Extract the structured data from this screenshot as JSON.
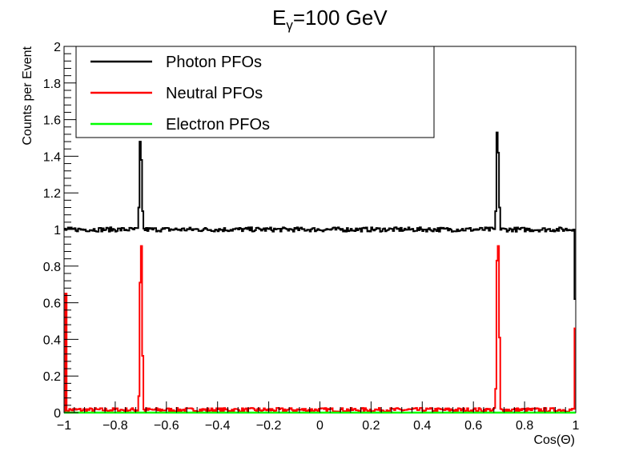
{
  "chart_data": {
    "type": "line",
    "title_main": "E",
    "title_sub": "γ",
    "title_rest": "=100 GeV",
    "xlabel": "Cos(Θ)",
    "ylabel": "Counts per Event",
    "xlim": [
      -1,
      1
    ],
    "ylim": [
      0,
      2
    ],
    "grid": false,
    "legend_position": "top-left",
    "xticks": [
      -1,
      -0.8,
      -0.6,
      -0.4,
      -0.2,
      0,
      0.2,
      0.4,
      0.6,
      0.8,
      1
    ],
    "xtick_labels": [
      "−1",
      "−0.8",
      "−0.6",
      "−0.4",
      "−0.2",
      "0",
      "0.2",
      "0.4",
      "0.6",
      "0.8",
      "1"
    ],
    "yticks": [
      0,
      0.2,
      0.4,
      0.6,
      0.8,
      1,
      1.2,
      1.4,
      1.6,
      1.8,
      2
    ],
    "ytick_labels": [
      "0",
      "0.2",
      "0.4",
      "0.6",
      "0.8",
      "1",
      "1.2",
      "1.4",
      "1.6",
      "1.8",
      "2"
    ],
    "series": [
      {
        "name": "Photon PFOs",
        "color": "#000000",
        "baseline": 1.0,
        "peaks": [
          {
            "x": -0.703,
            "values": [
              0.12,
              0.48,
              0.38,
              0.1
            ]
          },
          {
            "x": 0.693,
            "values": [
              0.1,
              0.53,
              0.42,
              0.12
            ]
          }
        ],
        "edges": [
          {
            "x": 0.99,
            "value": 1.0
          },
          {
            "x": 0.995,
            "value": 0.62
          }
        ]
      },
      {
        "name": "Neutral PFOs",
        "color": "#ff0000",
        "baseline": 0.01,
        "peaks": [
          {
            "x": -0.703,
            "values": [
              0.08,
              0.7,
              0.9,
              0.3
            ]
          },
          {
            "x": 0.693,
            "values": [
              0.12,
              0.82,
              0.9,
              0.4
            ]
          }
        ],
        "edges": [
          {
            "x": -0.995,
            "value": 0.65
          },
          {
            "x": 0.995,
            "value": 0.46
          }
        ]
      },
      {
        "name": "Electron PFOs",
        "color": "#00ff00",
        "baseline": 0.0
      }
    ]
  }
}
